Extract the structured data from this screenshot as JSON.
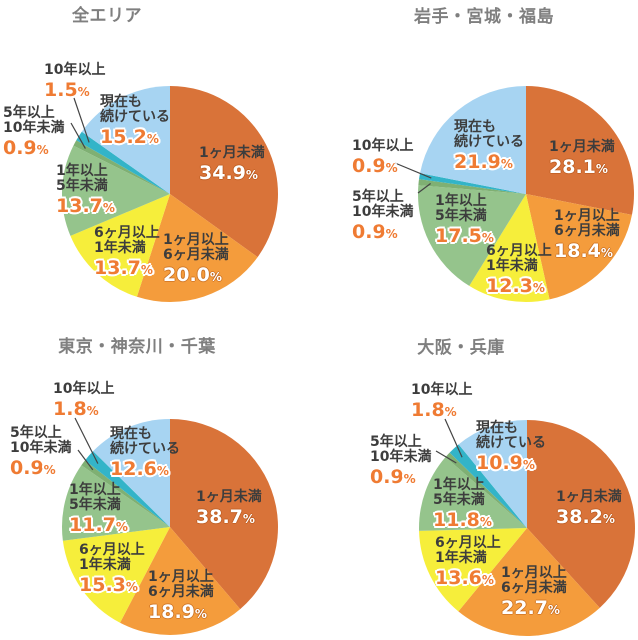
{
  "page": {
    "background": "#ffffff",
    "percent_sign": "%"
  },
  "colors": {
    "title_text": "#7f7f7f",
    "category_text": "#3d3d3d",
    "percent_orange": "#ef7b33",
    "percent_white": "#ffffff",
    "leader_line": "#444444"
  },
  "slice_palette": [
    "#d97339",
    "#f49c3c",
    "#f6ee3b",
    "#95c48c",
    "#7fb073",
    "#33b4c8",
    "#a7d4f2"
  ],
  "chart_data": [
    {
      "type": "pie",
      "title": "全エリア",
      "unit": "%",
      "legend_position": "labels-on-slices",
      "slices": [
        {
          "label": "1ヶ月未満",
          "value": 34.9
        },
        {
          "label": "1ヶ月以上6ヶ月未満",
          "value": 20.0
        },
        {
          "label": "6ヶ月以上1年未満",
          "value": 13.7
        },
        {
          "label": "1年以上5年未満",
          "value": 13.7
        },
        {
          "label": "5年以上10年未満",
          "value": 0.9
        },
        {
          "label": "10年以上",
          "value": 1.5
        },
        {
          "label": "現在も続けている",
          "value": 15.2
        }
      ]
    },
    {
      "type": "pie",
      "title": "岩手・宮城・福島",
      "unit": "%",
      "legend_position": "labels-on-slices",
      "slices": [
        {
          "label": "1ヶ月未満",
          "value": 28.1
        },
        {
          "label": "1ヶ月以上6ヶ月未満",
          "value": 18.4
        },
        {
          "label": "6ヶ月以上1年未満",
          "value": 12.3
        },
        {
          "label": "1年以上5年未満",
          "value": 17.5
        },
        {
          "label": "5年以上10年未満",
          "value": 0.9
        },
        {
          "label": "10年以上",
          "value": 0.9
        },
        {
          "label": "現在も続けている",
          "value": 21.9
        }
      ]
    },
    {
      "type": "pie",
      "title": "東京・神奈川・千葉",
      "unit": "%",
      "legend_position": "labels-on-slices",
      "slices": [
        {
          "label": "1ヶ月未満",
          "value": 38.7
        },
        {
          "label": "1ヶ月以上6ヶ月未満",
          "value": 18.9
        },
        {
          "label": "6ヶ月以上1年未満",
          "value": 15.3
        },
        {
          "label": "1年以上5年未満",
          "value": 11.7
        },
        {
          "label": "5年以上10年未満",
          "value": 0.9
        },
        {
          "label": "10年以上",
          "value": 1.8
        },
        {
          "label": "現在も続けている",
          "value": 12.6
        }
      ]
    },
    {
      "type": "pie",
      "title": "大阪・兵庫",
      "unit": "%",
      "legend_position": "labels-on-slices",
      "slices": [
        {
          "label": "1ヶ月未満",
          "value": 38.2
        },
        {
          "label": "1ヶ月以上6ヶ月未満",
          "value": 22.7
        },
        {
          "label": "6ヶ月以上1年未満",
          "value": 13.6
        },
        {
          "label": "1年以上5年未満",
          "value": 11.8
        },
        {
          "label": "5年以上10年未満",
          "value": 0.9
        },
        {
          "label": "10年以上",
          "value": 1.8
        },
        {
          "label": "現在も続けている",
          "value": 10.9
        }
      ]
    }
  ]
}
